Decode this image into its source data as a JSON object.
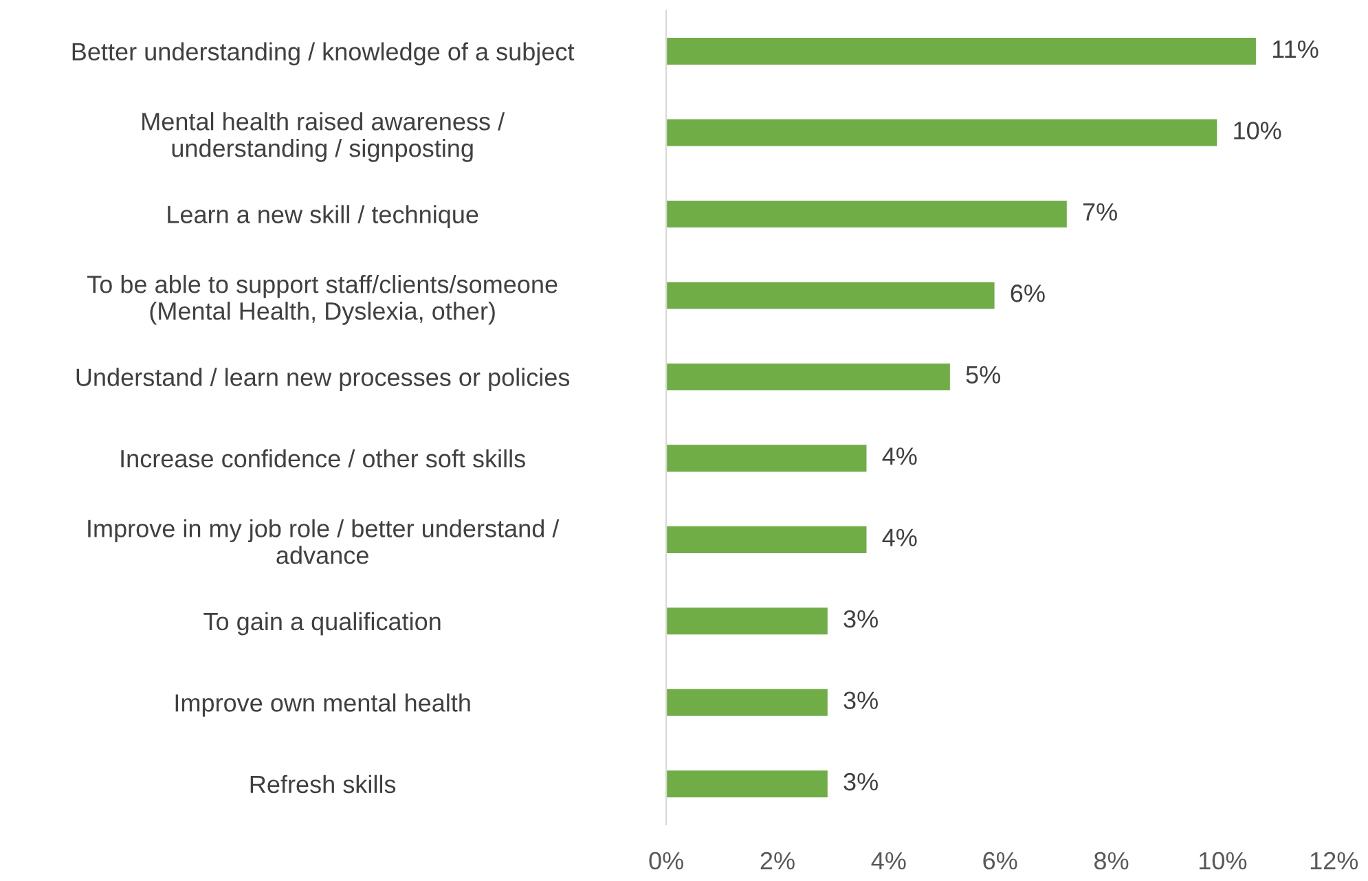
{
  "chart_data": {
    "type": "bar",
    "orientation": "horizontal",
    "categories": [
      "Better understanding / knowledge of a subject",
      "Mental health raised awareness /\nunderstanding / signposting",
      "Learn a new skill / technique",
      "To be able to support staff/clients/someone\n(Mental Health, Dyslexia, other)",
      "Understand / learn new processes or policies",
      "Increase confidence / other soft skills",
      "Improve in my job role / better understand /\nadvance",
      "To gain a qualification",
      "Improve own mental health",
      "Refresh skills"
    ],
    "values": [
      10.6,
      9.9,
      7.2,
      5.9,
      5.1,
      3.6,
      3.6,
      2.9,
      2.9,
      2.9
    ],
    "value_labels": [
      "11%",
      "10%",
      "7%",
      "6%",
      "5%",
      "4%",
      "4%",
      "3%",
      "3%",
      "3%"
    ],
    "color": "#70ad47",
    "xlim": [
      0,
      12
    ],
    "xticks": [
      {
        "value": 0,
        "label": "0%"
      },
      {
        "value": 2,
        "label": "2%"
      },
      {
        "value": 4,
        "label": "4%"
      },
      {
        "value": 6,
        "label": "6%"
      },
      {
        "value": 8,
        "label": "8%"
      },
      {
        "value": 10,
        "label": "10%"
      },
      {
        "value": 12,
        "label": "12%"
      }
    ],
    "grid": false,
    "legend": false
  }
}
